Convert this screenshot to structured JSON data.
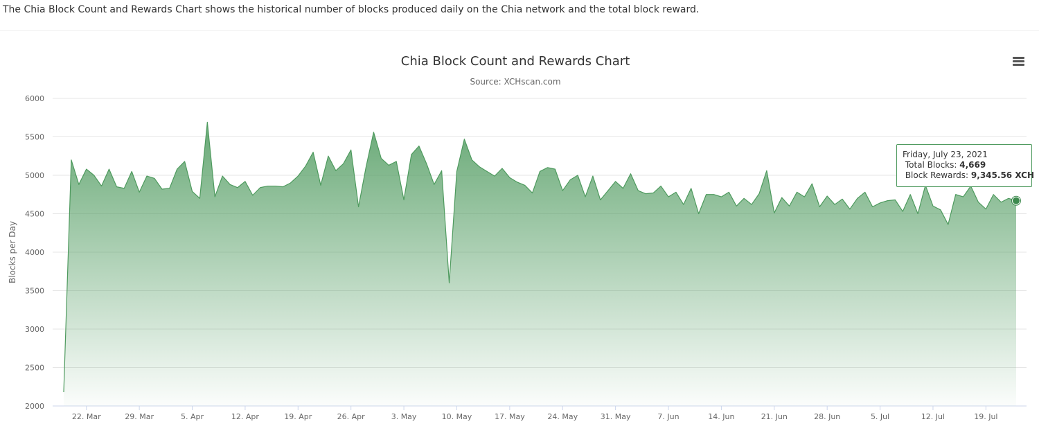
{
  "intro_text": "The Chia Block Count and Rewards Chart shows the historical number of blocks produced daily on the Chia network and the total block reward.",
  "chart_data": {
    "type": "area",
    "title": "Chia Block Count and Rewards Chart",
    "subtitle": "Source: XCHscan.com",
    "ylabel": "Blocks per Day",
    "xlabel": "",
    "ylim": [
      2000,
      6000
    ],
    "yticks": [
      2000,
      2500,
      3000,
      3500,
      4000,
      4500,
      5000,
      5500,
      6000
    ],
    "xticks": [
      "22. Mar",
      "29. Mar",
      "5. Apr",
      "12. Apr",
      "19. Apr",
      "26. Apr",
      "3. May",
      "10. May",
      "17. May",
      "24. May",
      "31. May",
      "7. Jun",
      "14. Jun",
      "21. Jun",
      "28. Jun",
      "5. Jul",
      "12. Jul",
      "19. Jul"
    ],
    "x_start": "2021-03-19",
    "grid": true,
    "series": [
      {
        "name": "Total Blocks",
        "color": "#4e9a5e",
        "values": [
          2180,
          5200,
          4880,
          5080,
          5000,
          4860,
          5080,
          4850,
          4830,
          5050,
          4780,
          4990,
          4960,
          4820,
          4830,
          5080,
          5180,
          4790,
          4700,
          5690,
          4720,
          4990,
          4880,
          4840,
          4920,
          4740,
          4840,
          4860,
          4860,
          4850,
          4900,
          4990,
          5120,
          5300,
          4870,
          5250,
          5060,
          5150,
          5330,
          4590,
          5110,
          5560,
          5220,
          5130,
          5180,
          4680,
          5270,
          5380,
          5150,
          4880,
          5060,
          3600,
          5050,
          5470,
          5200,
          5110,
          5050,
          4990,
          5090,
          4970,
          4910,
          4870,
          4770,
          5050,
          5100,
          5080,
          4800,
          4940,
          5000,
          4720,
          4990,
          4680,
          4800,
          4920,
          4830,
          5020,
          4800,
          4760,
          4770,
          4860,
          4720,
          4780,
          4620,
          4830,
          4500,
          4750,
          4750,
          4720,
          4780,
          4600,
          4700,
          4620,
          4760,
          5060,
          4510,
          4710,
          4600,
          4780,
          4720,
          4890,
          4590,
          4730,
          4620,
          4690,
          4560,
          4700,
          4780,
          4590,
          4640,
          4670,
          4680,
          4530,
          4750,
          4500,
          4870,
          4600,
          4550,
          4360,
          4750,
          4720,
          4860,
          4650,
          4560,
          4750,
          4650,
          4700,
          4669
        ]
      }
    ],
    "annotations": [
      "Friday, July 23, 2021"
    ]
  },
  "tooltip": {
    "date": "Friday, July 23, 2021",
    "blocks_label": "Total Blocks:",
    "blocks_value": "4,669",
    "rewards_label": "Block Rewards:",
    "rewards_value": "9,345.56 XCH"
  },
  "colors": {
    "line": "#4e9a5e",
    "fill_top": "#5aa86a",
    "marker": "#3d8a4e"
  },
  "icons": {
    "menu": "hamburger-menu-icon"
  }
}
